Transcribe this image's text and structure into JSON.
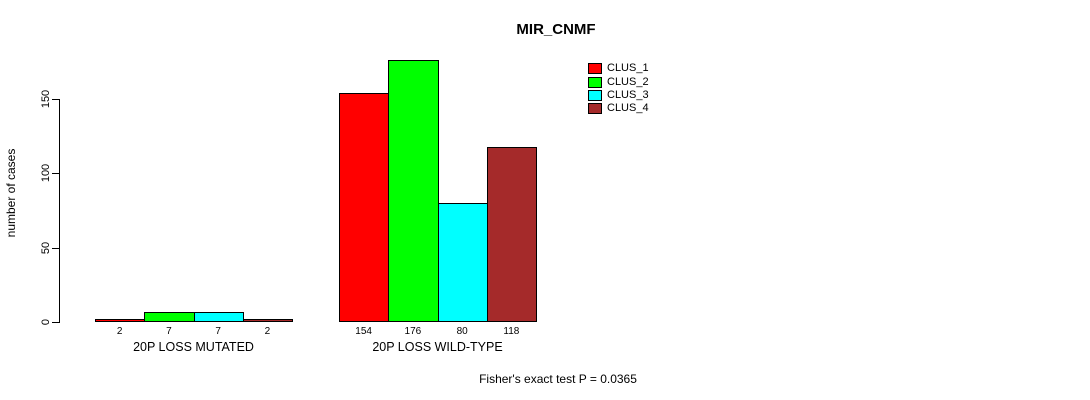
{
  "title": "MIR_CNMF",
  "footer_annotation": "Fisher's exact test P = 0.0365",
  "chart_data": {
    "type": "bar",
    "title": "MIR_CNMF",
    "xlabel": "",
    "ylabel": "number of cases",
    "categories": [
      "20P LOSS MUTATED",
      "20P LOSS WILD-TYPE"
    ],
    "series": [
      {
        "name": "CLUS_1",
        "color": "#ff0000",
        "values": [
          2,
          154
        ]
      },
      {
        "name": "CLUS_2",
        "color": "#00ff00",
        "values": [
          7,
          176
        ]
      },
      {
        "name": "CLUS_3",
        "color": "#00ffff",
        "values": [
          7,
          80
        ]
      },
      {
        "name": "CLUS_4",
        "color": "#a52a2a",
        "values": [
          2,
          118
        ]
      }
    ],
    "bar_value_labels": [
      [
        2,
        7,
        7,
        2
      ],
      [
        154,
        176,
        80,
        118
      ]
    ],
    "yticks": [
      0,
      50,
      100,
      150
    ],
    "ylim": [
      0,
      176
    ],
    "grid": false,
    "legend_position": "top-right-inside",
    "legend": [
      {
        "label": "CLUS_1",
        "color": "#ff0000"
      },
      {
        "label": "CLUS_2",
        "color": "#00ff00"
      },
      {
        "label": "CLUS_3",
        "color": "#00ffff"
      },
      {
        "label": "CLUS_4",
        "color": "#a52a2a"
      }
    ],
    "annotation": "Fisher's exact test P = 0.0365"
  }
}
